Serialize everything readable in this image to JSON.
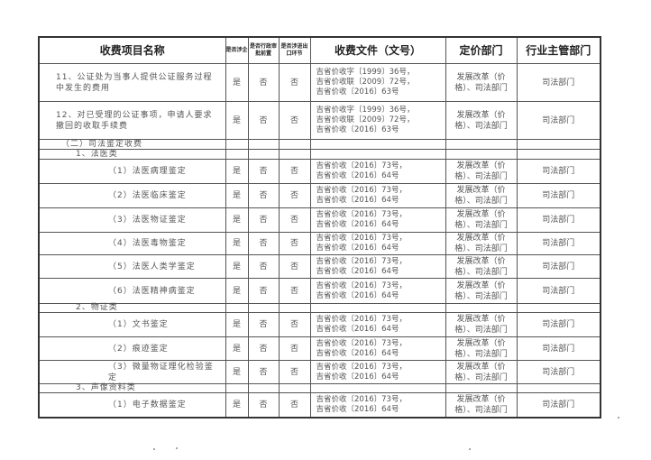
{
  "header": {
    "name": "收费项目名称",
    "involves_enterprise": "是否涉企",
    "admin_approval": "是否行政审批前置",
    "import_export": "是否涉进出口环节",
    "document": "收费文件（文号）",
    "pricing_dept": "定价部门",
    "supervising_dept": "行业主管部门"
  },
  "rows": [
    {
      "type": "item",
      "name": "11、公证处为当事人提供公证服务过程中发生的费用",
      "ent": "是",
      "admin": "否",
      "io": "否",
      "doc": [
        "吉省价收字〔1999〕36号，",
        "吉省价收联〔2009〕72号，",
        "吉省价收〔2016〕63号"
      ],
      "pricing": "发展改革（价格）、司法部门",
      "super": "司法部门"
    },
    {
      "type": "item",
      "name": "12、对已受理的公证事项，申请人要求撤回的收取手续费",
      "ent": "是",
      "admin": "否",
      "io": "否",
      "doc": [
        "吉省价收字〔1999〕36号，",
        "吉省价收联〔2009〕72号，",
        "吉省价收〔2016〕63号"
      ],
      "pricing": "发展改革（价格）、司法部门",
      "super": "司法部门"
    },
    {
      "type": "section",
      "name": "（二）司法鉴定收费"
    },
    {
      "type": "subsection",
      "name": "1、法医类"
    },
    {
      "type": "sub",
      "name": "（1）法医病理鉴定",
      "ent": "是",
      "admin": "否",
      "io": "否",
      "doc": [
        "吉省价收〔2016〕73号，",
        "吉省价收〔2016〕64号"
      ],
      "pricing": "发展改革（价格）、司法部门",
      "super": "司法部门"
    },
    {
      "type": "sub",
      "name": "（2）法医临床鉴定",
      "ent": "是",
      "admin": "否",
      "io": "否",
      "doc": [
        "吉省价收〔2016〕73号，",
        "吉省价收〔2016〕64号"
      ],
      "pricing": "发展改革（价格）、司法部门",
      "super": "司法部门"
    },
    {
      "type": "sub",
      "name": "（3）法医物证鉴定",
      "ent": "是",
      "admin": "否",
      "io": "否",
      "doc": [
        "吉省价收〔2016〕73号，",
        "吉省价收〔2016〕64号"
      ],
      "pricing": "发展改革（价格）、司法部门",
      "super": "司法部门"
    },
    {
      "type": "sub",
      "name": "（4）法医毒物鉴定",
      "ent": "是",
      "admin": "否",
      "io": "否",
      "doc": [
        "吉省价收〔2016〕73号，",
        "吉省价收〔2016〕64号"
      ],
      "pricing": "发展改革（价格）、司法部门",
      "super": "司法部门"
    },
    {
      "type": "sub",
      "name": "（5）法医人类学鉴定",
      "ent": "是",
      "admin": "否",
      "io": "否",
      "doc": [
        "吉省价收〔2016〕73号，",
        "吉省价收〔2016〕64号"
      ],
      "pricing": "发展改革（价格）、司法部门",
      "super": "司法部门"
    },
    {
      "type": "sub",
      "name": "（6）法医精神病鉴定",
      "ent": "是",
      "admin": "否",
      "io": "否",
      "doc": [
        "吉省价收〔2016〕73号，",
        "吉省价收〔2016〕64号"
      ],
      "pricing": "发展改革（价格）、司法部门",
      "super": "司法部门"
    },
    {
      "type": "subsection",
      "name": "2、物证类"
    },
    {
      "type": "sub",
      "name": "（1）文书鉴定",
      "ent": "是",
      "admin": "否",
      "io": "否",
      "doc": [
        "吉省价收〔2016〕73号，",
        "吉省价收〔2016〕64号"
      ],
      "pricing": "发展改革（价格）、司法部门",
      "super": "司法部门"
    },
    {
      "type": "sub",
      "name": "（2）痕迹鉴定",
      "ent": "是",
      "admin": "否",
      "io": "否",
      "doc": [
        "吉省价收〔2016〕73号，",
        "吉省价收〔2016〕64号"
      ],
      "pricing": "发展改革（价格）、司法部门",
      "super": "司法部门"
    },
    {
      "type": "sub",
      "name": "（3）微量物证理化检验鉴定",
      "ent": "是",
      "admin": "否",
      "io": "否",
      "doc": [
        "吉省价收〔2016〕73号，",
        "吉省价收〔2016〕64号"
      ],
      "pricing": "发展改革（价格）、司法部门",
      "super": "司法部门"
    },
    {
      "type": "subsection",
      "name": "3、声像资料类"
    },
    {
      "type": "sub",
      "name": "（1）电子数据鉴定",
      "ent": "是",
      "admin": "否",
      "io": "否",
      "doc": [
        "吉省价收〔2016〕73号，",
        "吉省价收〔2016〕64号"
      ],
      "pricing": "发展改革（价格）、司法部门",
      "super": "司法部门"
    }
  ]
}
